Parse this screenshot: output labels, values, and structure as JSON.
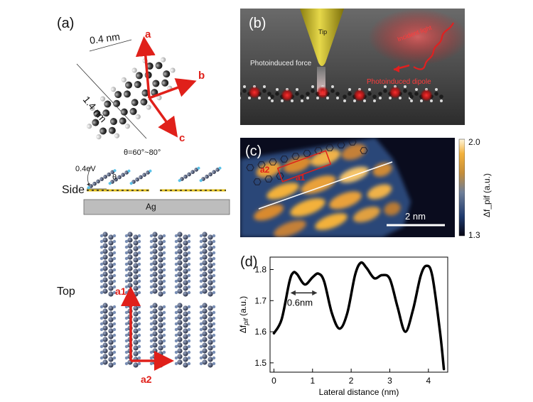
{
  "panel_a": {
    "letter": "(a)",
    "dim_width": "0.4 nm",
    "dim_length": "1.4 nm",
    "axis_a": "a",
    "axis_b": "b",
    "axis_c": "c",
    "side_label": "Side",
    "top_label": "Top",
    "energy_label": "0.4eV",
    "theta_range": "θ=60°~80°",
    "theta_symbol": "θ",
    "substrate": "Ag",
    "lattice_a1": "a1",
    "lattice_a2": "a2"
  },
  "panel_b": {
    "letter": "(b)",
    "tip": "Tip",
    "incident_light": "Incident light",
    "photoinduced_force": "Photoinduced force",
    "photoinduced_dipole": "Photoinduced dipole"
  },
  "panel_c": {
    "letter": "(c)",
    "a2": "a2",
    "a1": "a1",
    "scale_bar": "2 nm",
    "colorbar_max": "2.0",
    "colorbar_min": "1.3",
    "colorbar_label": "Δf_pif (a.u.)"
  },
  "panel_d": {
    "letter": "(d)",
    "annotation": "0.6nm",
    "ylabel_main": "Δf",
    "ylabel_sub": "pif",
    "ylabel_unit": " (a.u.)",
    "xlabel": "Lateral distance (nm)"
  },
  "colors": {
    "accent_red": "#e0201a",
    "curve": "#000000",
    "substrate_gray": "#bdbdbd"
  },
  "chart_data": {
    "type": "line",
    "xlabel": "Lateral distance (nm)",
    "ylabel": "Δf_pif (a.u.)",
    "xlim": [
      -0.1,
      4.5
    ],
    "ylim": [
      1.47,
      1.84
    ],
    "xticks": [
      0,
      1,
      2,
      3,
      4
    ],
    "yticks": [
      1.5,
      1.6,
      1.7,
      1.8
    ],
    "grid": false,
    "series": [
      {
        "x": [
          0,
          0.2,
          0.4,
          0.5,
          0.6,
          0.8,
          1.0,
          1.15,
          1.3,
          1.5,
          1.7,
          1.9,
          2.1,
          2.25,
          2.4,
          2.6,
          2.8,
          3.0,
          3.2,
          3.4,
          3.6,
          3.8,
          3.95,
          4.1,
          4.3,
          4.4
        ],
        "y": [
          1.595,
          1.64,
          1.76,
          1.79,
          1.785,
          1.752,
          1.775,
          1.787,
          1.762,
          1.66,
          1.61,
          1.66,
          1.782,
          1.822,
          1.805,
          1.772,
          1.782,
          1.77,
          1.68,
          1.6,
          1.67,
          1.78,
          1.812,
          1.78,
          1.6,
          1.48
        ]
      }
    ],
    "annotations": [
      {
        "text": "0.6nm",
        "x_from": 0.45,
        "x_to": 1.1,
        "y": 1.725
      }
    ]
  }
}
